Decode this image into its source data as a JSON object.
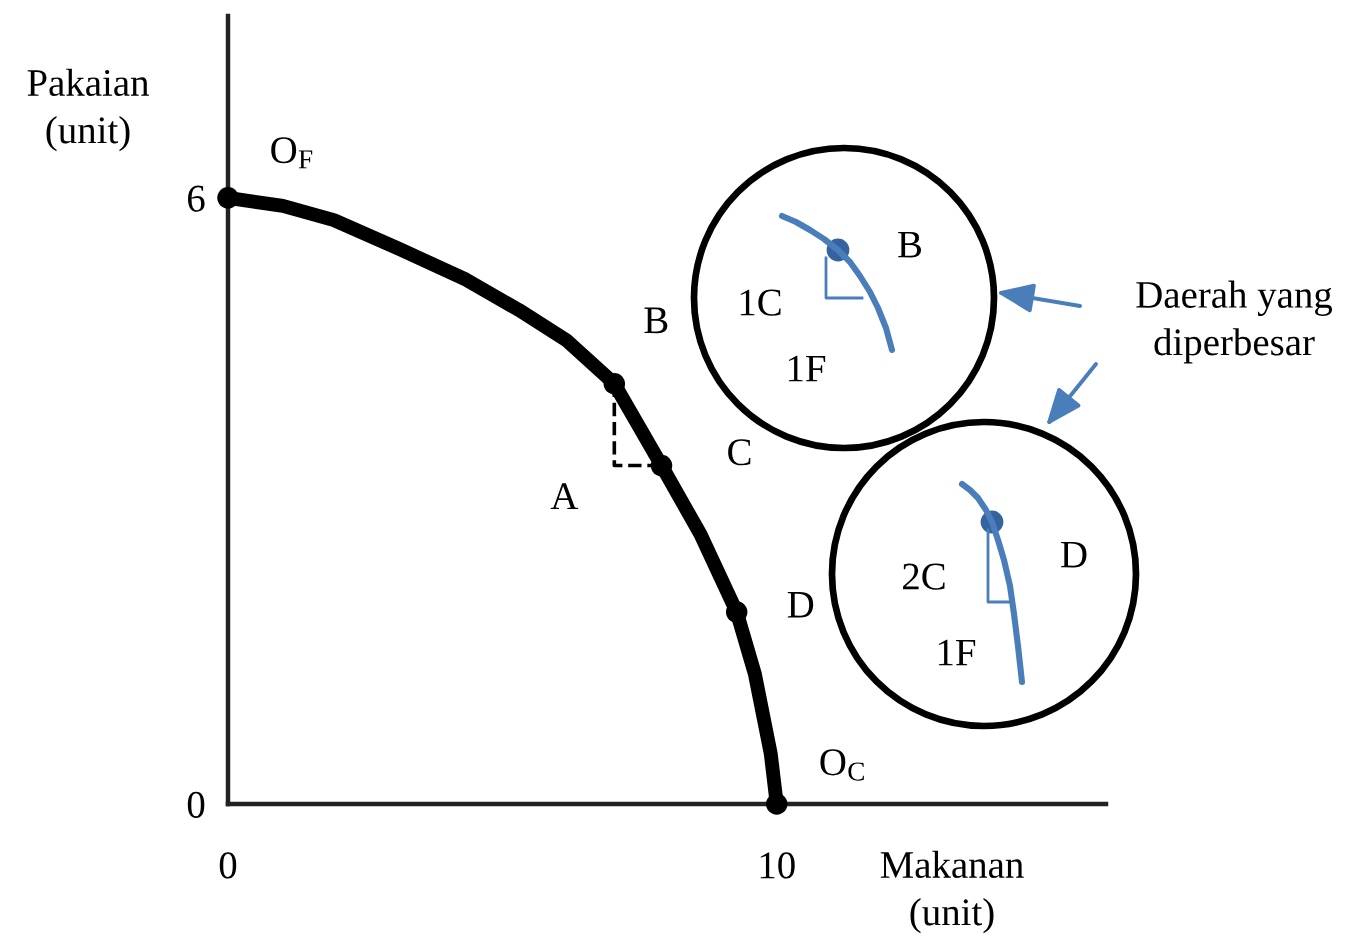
{
  "chart_data": {
    "type": "line",
    "xlabel": "Makanan\n(unit)",
    "ylabel": "Pakaian\n(unit)",
    "xlim": [
      0,
      16
    ],
    "ylim": [
      0,
      7.8
    ],
    "xticks": [
      0,
      10
    ],
    "yticks": [
      0,
      6
    ],
    "series": [
      {
        "color": "#000000",
        "line_style": "solid",
        "x": [
          0,
          1,
          1.93,
          3.14,
          4.34,
          5.3,
          6.17,
          7.04,
          7.9,
          8.61,
          9.27,
          9.6,
          9.89,
          10
        ],
        "values": [
          6,
          5.92,
          5.78,
          5.49,
          5.19,
          4.89,
          4.59,
          4.16,
          3.35,
          2.67,
          1.9,
          1.29,
          0.5,
          0
        ]
      },
      {
        "type": "line",
        "color": "#000000",
        "line_style": "dashed",
        "x": [
          7.04,
          7.04,
          7.9
        ],
        "values": [
          4.16,
          3.35,
          3.35
        ]
      },
      {
        "type": "scatter",
        "color": "#000000",
        "marker": "circle",
        "x": [
          0,
          7.04,
          7.9,
          9.27,
          10
        ],
        "values": [
          6,
          4.16,
          3.35,
          1.9,
          0
        ]
      }
    ],
    "annotations": [
      {
        "text": "O$_{F}$",
        "x": 0,
        "y": 6
      },
      {
        "text": "B",
        "x": 7.04,
        "y": 4.16
      },
      {
        "text": "A",
        "x": 7.04,
        "y": 3.35
      },
      {
        "text": "C",
        "x": 7.9,
        "y": 3.35
      },
      {
        "text": "D",
        "x": 9.27,
        "y": 1.9
      },
      {
        "text": "O$_{C}$",
        "x": 10,
        "y": 0
      },
      "Daerah yang\ndiperbesar",
      "1C",
      "1F",
      "B",
      "2C",
      "1F",
      "D"
    ]
  }
}
